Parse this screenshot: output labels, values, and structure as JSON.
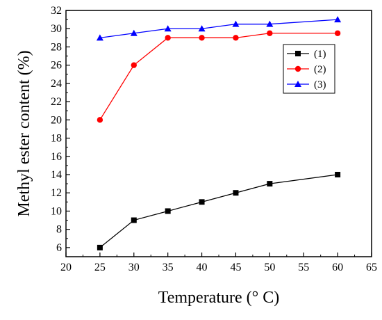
{
  "chart_data": {
    "type": "line",
    "title": "",
    "xlabel": "Temperature (° C)",
    "ylabel": "Methyl ester content (%)",
    "xlim": [
      20,
      65
    ],
    "ylim": [
      5,
      32
    ],
    "xticks": [
      20,
      25,
      30,
      35,
      40,
      45,
      50,
      55,
      60,
      65
    ],
    "yticks": [
      6,
      8,
      10,
      12,
      14,
      16,
      18,
      20,
      22,
      24,
      26,
      28,
      30,
      32
    ],
    "grid": false,
    "legend_position": "top-right",
    "series": [
      {
        "name": "(1)",
        "color": "#000000",
        "marker": "square",
        "x": [
          25,
          30,
          35,
          40,
          45,
          50,
          60
        ],
        "y": [
          6,
          9,
          10,
          11,
          12,
          13,
          14
        ]
      },
      {
        "name": "(2)",
        "color": "#ff0000",
        "marker": "circle",
        "x": [
          25,
          30,
          35,
          40,
          45,
          50,
          60
        ],
        "y": [
          20,
          26,
          29,
          29,
          29,
          29.5,
          29.5
        ]
      },
      {
        "name": "(3)",
        "color": "#0000ff",
        "marker": "triangle",
        "x": [
          25,
          30,
          35,
          40,
          45,
          50,
          60
        ],
        "y": [
          29,
          29.5,
          30,
          30,
          30.5,
          30.5,
          31
        ]
      }
    ]
  }
}
